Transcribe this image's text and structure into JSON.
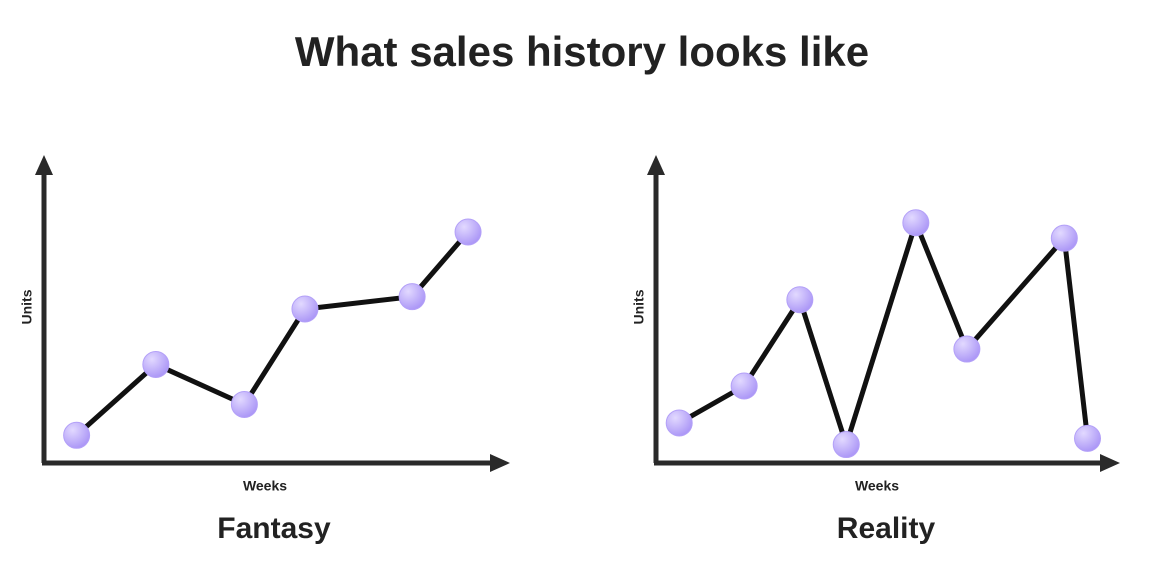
{
  "title": "What sales history looks like",
  "chart_data": [
    {
      "type": "line",
      "title": "Fantasy",
      "x_label": "Weeks",
      "y_label": "Units",
      "x": [
        7,
        24,
        43,
        56,
        79,
        91
      ],
      "series": [
        {
          "values": [
            9,
            32,
            19,
            50,
            54,
            75
          ],
          "color": "#b3a0f8",
          "line_color": "#111111"
        }
      ],
      "xlim": [
        0,
        100
      ],
      "ylim": [
        0,
        100
      ]
    },
    {
      "type": "line",
      "title": "Reality",
      "x_label": "Weeks",
      "y_label": "Units",
      "x": [
        5,
        19,
        31,
        41,
        56,
        67,
        88,
        93
      ],
      "series": [
        {
          "values": [
            13,
            25,
            53,
            6,
            78,
            37,
            73,
            8
          ],
          "color": "#b3a0f8",
          "line_color": "#111111"
        }
      ],
      "xlim": [
        0,
        100
      ],
      "ylim": [
        0,
        100
      ]
    }
  ]
}
